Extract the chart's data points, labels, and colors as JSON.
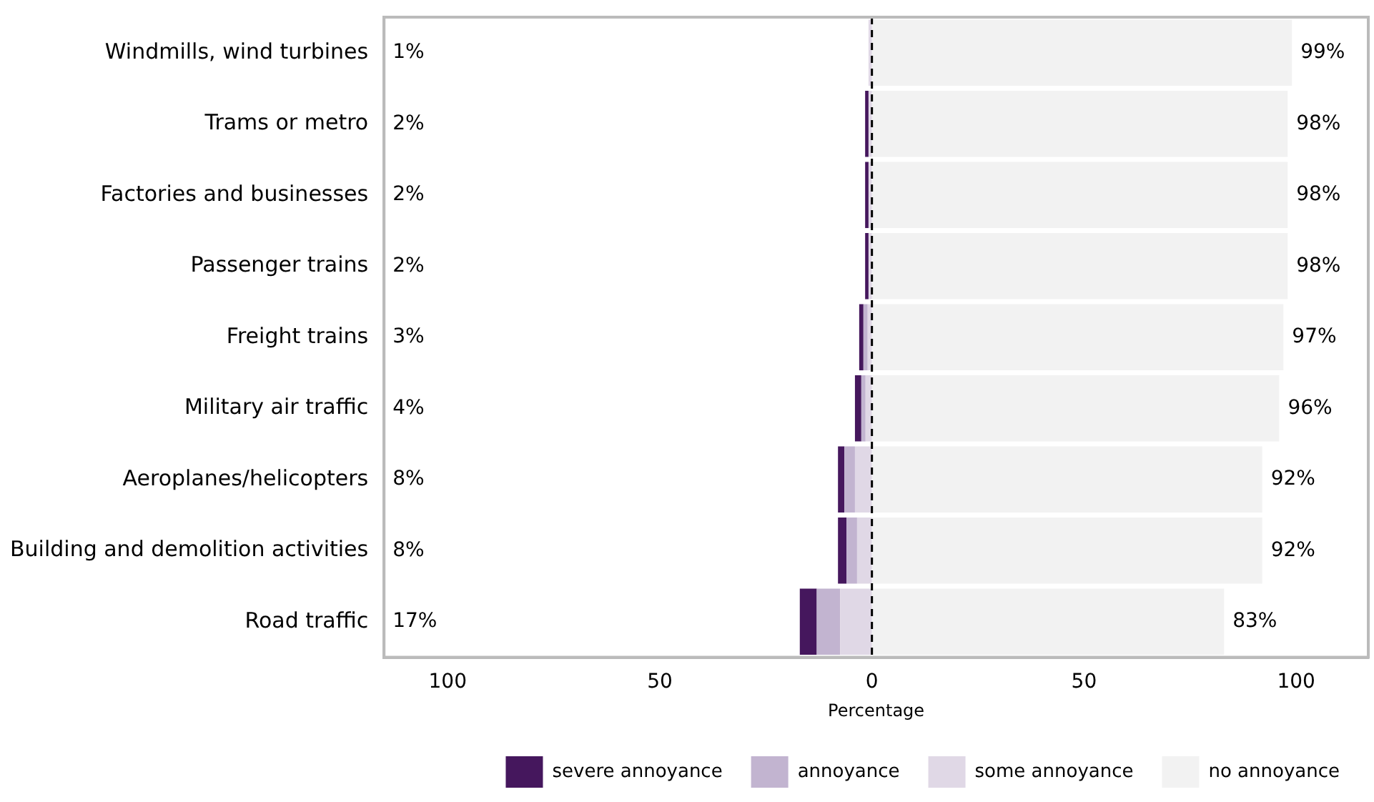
{
  "chart_data": {
    "type": "bar",
    "orientation": "horizontal",
    "stacked": true,
    "xlabel": "Percentage",
    "categories": [
      "Windmills, wind turbines",
      "Trams or metro",
      "Factories and businesses",
      "Passenger trains",
      "Freight trains",
      "Military air traffic",
      "Aeroplanes/helicopters",
      "Building and demolition activities",
      "Road traffic"
    ],
    "series": [
      {
        "name": "some annoyance",
        "color": "#e0d8e6",
        "values": [
          -0.8,
          -0.8,
          -0.8,
          -0.8,
          -1,
          -1.5,
          -4,
          -3.5,
          -7.5
        ]
      },
      {
        "name": "annoyance",
        "color": "#c2b4d0",
        "values": [
          null,
          null,
          null,
          null,
          -1,
          -1,
          -2.5,
          -2.5,
          -5.5
        ]
      },
      {
        "name": "severe annoyance",
        "color": "#45175d",
        "values": [
          0,
          -0.8,
          -0.8,
          -0.8,
          -1,
          -1.5,
          -1.5,
          -2,
          -4
        ]
      },
      {
        "name": "no annoyance",
        "color": "#f2f2f2",
        "values": [
          99,
          98,
          98,
          98,
          97,
          96,
          92,
          92,
          83
        ],
        "value_labels": [
          "99%",
          "98%",
          "98%",
          "98%",
          "97%",
          "96%",
          "92%",
          "92%",
          "83%"
        ]
      }
    ],
    "annotations": [
      "1%",
      "2%",
      "2%",
      "2%",
      "3%",
      "4%",
      "8%",
      "8%",
      "17%"
    ],
    "xlim": [
      -115,
      117
    ],
    "xticks": [
      {
        "value": -100,
        "label": "100"
      },
      {
        "value": -50,
        "label": "50"
      },
      0,
      50,
      100
    ],
    "ref_lines": [
      {
        "axis": "x",
        "value": 0,
        "line_style": "dashed",
        "color": "#000000"
      }
    ],
    "grid": false,
    "legend": "bottom"
  }
}
